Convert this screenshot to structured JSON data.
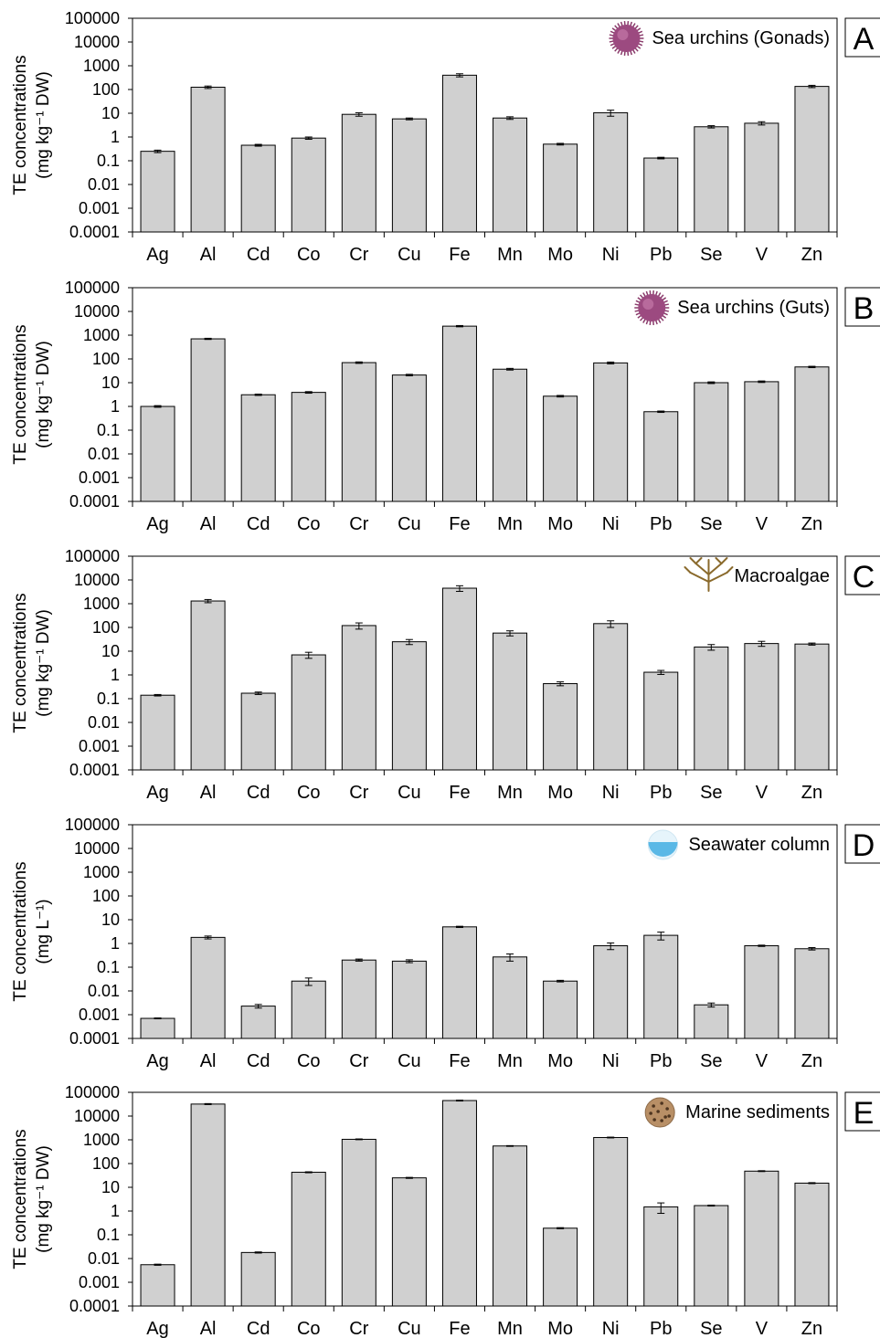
{
  "chart_data": [
    {
      "type": "bar",
      "letter": "A",
      "title": "Sea urchins (Gonads)",
      "ylabel": [
        "TE concentrations",
        "(mg kg⁻¹ DW)"
      ],
      "yscale": "log",
      "ylim": [
        0.0001,
        100000
      ],
      "yticks": [
        "100000",
        "10000",
        "1000",
        "100",
        "10",
        "1",
        "0.1",
        "0.01",
        "0.001",
        "0.0001"
      ],
      "grid": false,
      "icon": "sea-urchin-icon",
      "categories": [
        "Ag",
        "Al",
        "Cd",
        "Co",
        "Cr",
        "Cu",
        "Fe",
        "Mn",
        "Mo",
        "Ni",
        "Pb",
        "Se",
        "V",
        "Zn"
      ],
      "values": [
        0.25,
        125,
        0.45,
        0.9,
        9,
        5.8,
        400,
        6.3,
        0.5,
        10.5,
        0.13,
        2.7,
        3.8,
        135
      ],
      "errors": [
        0.03,
        15,
        0.04,
        0.1,
        1.5,
        0.5,
        60,
        0.8,
        0.04,
        3,
        0.01,
        0.3,
        0.6,
        15
      ]
    },
    {
      "type": "bar",
      "letter": "B",
      "title": "Sea urchins (Guts)",
      "ylabel": [
        "TE concentrations",
        "(mg kg⁻¹ DW)"
      ],
      "yscale": "log",
      "ylim": [
        0.0001,
        100000
      ],
      "yticks": [
        "100000",
        "10000",
        "1000",
        "100",
        "10",
        "1",
        "0.1",
        "0.01",
        "0.001",
        "0.0001"
      ],
      "grid": false,
      "icon": "sea-urchin-icon",
      "categories": [
        "Ag",
        "Al",
        "Cd",
        "Co",
        "Cr",
        "Cu",
        "Fe",
        "Mn",
        "Mo",
        "Ni",
        "Pb",
        "Se",
        "V",
        "Zn"
      ],
      "values": [
        1,
        700,
        3.1,
        3.9,
        70,
        21,
        2400,
        37,
        2.7,
        68,
        0.6,
        10,
        11,
        46
      ],
      "errors": [
        0.08,
        40,
        0.2,
        0.3,
        5,
        1.5,
        150,
        3,
        0.2,
        6,
        0.04,
        0.8,
        0.8,
        3
      ]
    },
    {
      "type": "bar",
      "letter": "C",
      "title": "Macroalgae",
      "ylabel": [
        "TE concentrations",
        "(mg kg⁻¹ DW)"
      ],
      "yscale": "log",
      "ylim": [
        0.0001,
        100000
      ],
      "yticks": [
        "100000",
        "10000",
        "1000",
        "100",
        "10",
        "1",
        "0.1",
        "0.01",
        "0.001",
        "0.0001"
      ],
      "grid": false,
      "icon": "macroalgae-icon",
      "categories": [
        "Ag",
        "Al",
        "Cd",
        "Co",
        "Cr",
        "Cu",
        "Fe",
        "Mn",
        "Mo",
        "Ni",
        "Pb",
        "Se",
        "V",
        "Zn"
      ],
      "values": [
        0.14,
        1300,
        0.17,
        7,
        120,
        25,
        4500,
        58,
        0.43,
        145,
        1.3,
        15,
        21,
        20
      ],
      "errors": [
        0.01,
        200,
        0.02,
        2,
        35,
        6,
        1200,
        14,
        0.08,
        45,
        0.25,
        4,
        5,
        2
      ]
    },
    {
      "type": "bar",
      "letter": "D",
      "title": "Seawater column",
      "ylabel": [
        "TE concentrations",
        "(mg L⁻¹)"
      ],
      "yscale": "log",
      "ylim": [
        0.0001,
        100000
      ],
      "yticks": [
        "100000",
        "10000",
        "1000",
        "100",
        "10",
        "1",
        "0.1",
        "0.01",
        "0.001",
        "0.0001"
      ],
      "grid": false,
      "icon": "seawater-icon",
      "categories": [
        "Ag",
        "Al",
        "Cd",
        "Co",
        "Cr",
        "Cu",
        "Fe",
        "Mn",
        "Mo",
        "Ni",
        "Pb",
        "Se",
        "V",
        "Zn"
      ],
      "values": [
        0.0007,
        1.8,
        0.0023,
        0.026,
        0.2,
        0.18,
        5,
        0.27,
        0.026,
        0.8,
        2.2,
        0.0026,
        0.8,
        0.6
      ],
      "errors": [
        3e-05,
        0.25,
        0.0004,
        0.009,
        0.02,
        0.025,
        0.3,
        0.09,
        0.002,
        0.25,
        0.8,
        0.0005,
        0.05,
        0.07
      ]
    },
    {
      "type": "bar",
      "letter": "E",
      "title": "Marine sediments",
      "ylabel": [
        "TE concentrations",
        "(mg kg⁻¹ DW)"
      ],
      "yscale": "log",
      "ylim": [
        0.0001,
        100000
      ],
      "yticks": [
        "100000",
        "10000",
        "1000",
        "100",
        "10",
        "1",
        "0.1",
        "0.01",
        "0.001",
        "0.0001"
      ],
      "grid": false,
      "icon": "sediment-icon",
      "categories": [
        "Ag",
        "Al",
        "Cd",
        "Co",
        "Cr",
        "Cu",
        "Fe",
        "Mn",
        "Mo",
        "Ni",
        "Pb",
        "Se",
        "V",
        "Zn"
      ],
      "values": [
        0.0055,
        32000,
        0.018,
        43,
        1050,
        25,
        45000,
        550,
        0.19,
        1250,
        1.5,
        1.7,
        48,
        15
      ],
      "errors": [
        0.0003,
        1500,
        0.001,
        2,
        40,
        1.2,
        2000,
        20,
        0.01,
        50,
        0.7,
        0.08,
        2,
        0.7
      ]
    }
  ]
}
